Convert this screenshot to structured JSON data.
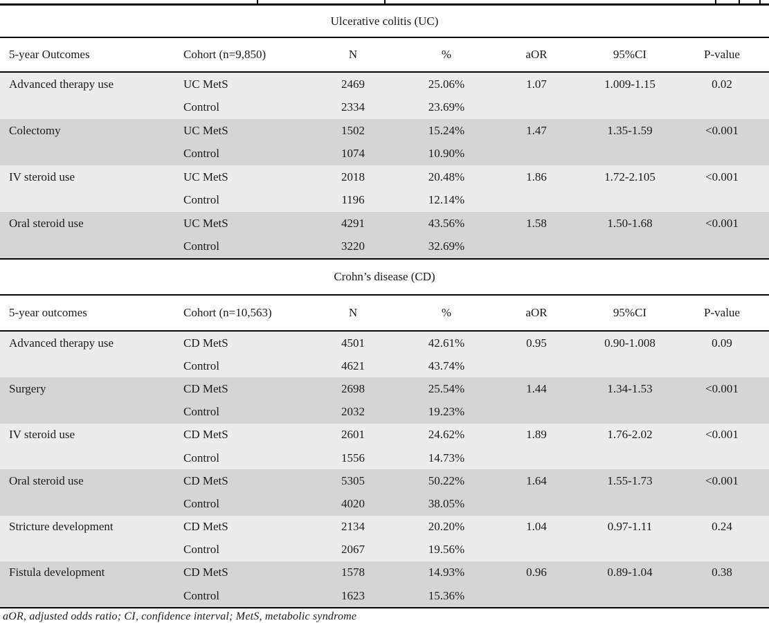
{
  "footnote": "aOR, adjusted odds ratio; CI, confidence interval; MetS, metabolic syndrome",
  "colors": {
    "row_light": "#ececec",
    "row_dark": "#d5d5d6",
    "rule": "#060606",
    "text": "#1a1a1a"
  },
  "sections": [
    {
      "title": "Ulcerative colitis (UC)",
      "columns": [
        "5-year Outcomes",
        "Cohort (n=9,850)",
        "N",
        "%",
        "aOR",
        "95%CI",
        "P-value"
      ],
      "groups": [
        {
          "outcome": "Advanced therapy use",
          "rows": [
            {
              "cohort": "UC MetS",
              "n": "2469",
              "pct": "25.06%",
              "aor": "1.07",
              "ci": "1.009-1.15",
              "p": "0.02"
            },
            {
              "cohort": "Control",
              "n": "2334",
              "pct": "23.69%",
              "aor": "",
              "ci": "",
              "p": ""
            }
          ]
        },
        {
          "outcome": "Colectomy",
          "rows": [
            {
              "cohort": "UC MetS",
              "n": "1502",
              "pct": "15.24%",
              "aor": "1.47",
              "ci": "1.35-1.59",
              "p": "<0.001"
            },
            {
              "cohort": "Control",
              "n": "1074",
              "pct": "10.90%",
              "aor": "",
              "ci": "",
              "p": ""
            }
          ]
        },
        {
          "outcome": "IV steroid use",
          "rows": [
            {
              "cohort": "UC MetS",
              "n": "2018",
              "pct": "20.48%",
              "aor": "1.86",
              "ci": "1.72-2.105",
              "p": "<0.001"
            },
            {
              "cohort": "Control",
              "n": "1196",
              "pct": "12.14%",
              "aor": "",
              "ci": "",
              "p": ""
            }
          ]
        },
        {
          "outcome": "Oral steroid use",
          "rows": [
            {
              "cohort": "UC MetS",
              "n": "4291",
              "pct": "43.56%",
              "aor": "1.58",
              "ci": "1.50-1.68",
              "p": "<0.001"
            },
            {
              "cohort": "Control",
              "n": "3220",
              "pct": "32.69%",
              "aor": "",
              "ci": "",
              "p": ""
            }
          ]
        }
      ]
    },
    {
      "title": "Crohn’s disease (CD)",
      "columns": [
        "5-year outcomes",
        "Cohort (n=10,563)",
        "N",
        "%",
        "aOR",
        "95%CI",
        "P-value"
      ],
      "groups": [
        {
          "outcome": "Advanced therapy use",
          "rows": [
            {
              "cohort": "CD MetS",
              "n": "4501",
              "pct": "42.61%",
              "aor": "0.95",
              "ci": "0.90-1.008",
              "p": "0.09"
            },
            {
              "cohort": "Control",
              "n": "4621",
              "pct": "43.74%",
              "aor": "",
              "ci": "",
              "p": ""
            }
          ]
        },
        {
          "outcome": "Surgery",
          "rows": [
            {
              "cohort": "CD MetS",
              "n": "2698",
              "pct": "25.54%",
              "aor": "1.44",
              "ci": "1.34-1.53",
              "p": "<0.001"
            },
            {
              "cohort": "Control",
              "n": "2032",
              "pct": "19.23%",
              "aor": "",
              "ci": "",
              "p": ""
            }
          ]
        },
        {
          "outcome": "IV steroid use",
          "rows": [
            {
              "cohort": "CD MetS",
              "n": "2601",
              "pct": "24.62%",
              "aor": "1.89",
              "ci": "1.76-2.02",
              "p": "<0.001"
            },
            {
              "cohort": "Control",
              "n": "1556",
              "pct": "14.73%",
              "aor": "",
              "ci": "",
              "p": ""
            }
          ]
        },
        {
          "outcome": "Oral steroid use",
          "rows": [
            {
              "cohort": "CD MetS",
              "n": "5305",
              "pct": "50.22%",
              "aor": "1.64",
              "ci": "1.55-1.73",
              "p": "<0.001"
            },
            {
              "cohort": "Control",
              "n": "4020",
              "pct": "38.05%",
              "aor": "",
              "ci": "",
              "p": ""
            }
          ]
        },
        {
          "outcome": "Stricture development",
          "rows": [
            {
              "cohort": "CD MetS",
              "n": "2134",
              "pct": "20.20%",
              "aor": "1.04",
              "ci": "0.97-1.11",
              "p": "0.24"
            },
            {
              "cohort": "Control",
              "n": "2067",
              "pct": "19.56%",
              "aor": "",
              "ci": "",
              "p": ""
            }
          ]
        },
        {
          "outcome": "Fistula development",
          "rows": [
            {
              "cohort": "CD MetS",
              "n": "1578",
              "pct": "14.93%",
              "aor": "0.96",
              "ci": "0.89-1.04",
              "p": "0.38"
            },
            {
              "cohort": "Control",
              "n": "1623",
              "pct": "15.36%",
              "aor": "",
              "ci": "",
              "p": ""
            }
          ]
        }
      ]
    }
  ]
}
